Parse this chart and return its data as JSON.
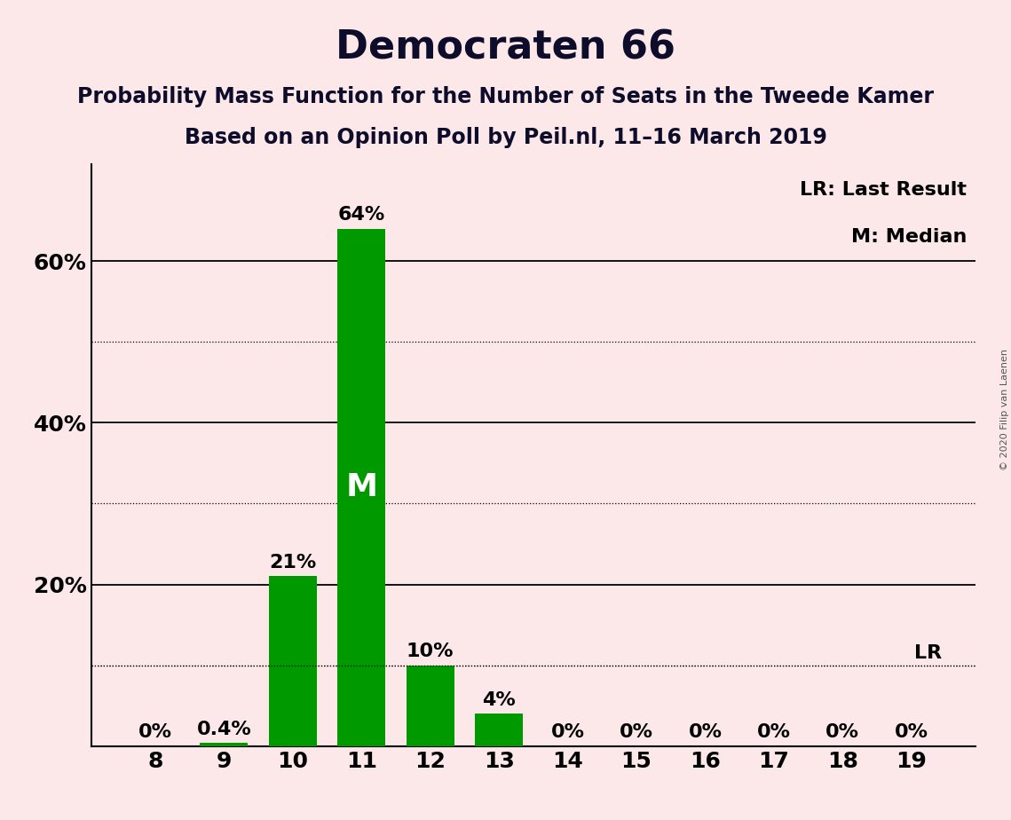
{
  "title": "Democraten 66",
  "subtitle1": "Probability Mass Function for the Number of Seats in the Tweede Kamer",
  "subtitle2": "Based on an Opinion Poll by Peil.nl, 11–16 March 2019",
  "copyright": "© 2020 Filip van Laenen",
  "categories": [
    8,
    9,
    10,
    11,
    12,
    13,
    14,
    15,
    16,
    17,
    18,
    19
  ],
  "values": [
    0.0,
    0.4,
    21.0,
    64.0,
    10.0,
    4.0,
    0.0,
    0.0,
    0.0,
    0.0,
    0.0,
    0.0
  ],
  "bar_color": "#009900",
  "background_color": "#fce8e8",
  "bar_labels": [
    "0%",
    "0.4%",
    "21%",
    "64%",
    "10%",
    "4%",
    "0%",
    "0%",
    "0%",
    "0%",
    "0%",
    "0%"
  ],
  "median_bar_index": 3,
  "median_label": "M",
  "lr_value": 10.0,
  "lr_label": "LR",
  "legend_lr": "LR: Last Result",
  "legend_m": "M: Median",
  "ylim": [
    0,
    72
  ],
  "ylabel_solid": [
    20,
    40,
    60
  ],
  "ylabel_dotted": [
    10,
    30,
    50
  ],
  "ytick_positions": [
    20,
    40,
    60
  ],
  "ytick_labels": [
    "20%",
    "40%",
    "60%"
  ],
  "title_fontsize": 32,
  "subtitle_fontsize": 17,
  "bar_label_fontsize": 16,
  "median_label_fontsize": 26,
  "legend_fontsize": 16,
  "tick_fontsize": 18,
  "copyright_fontsize": 8
}
